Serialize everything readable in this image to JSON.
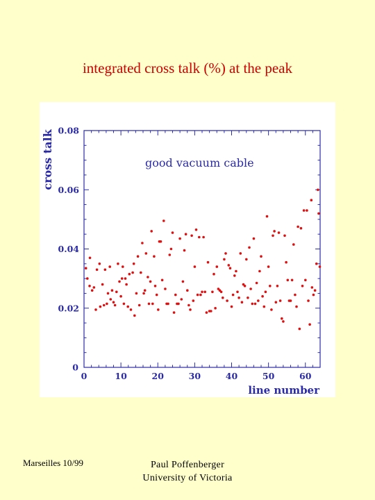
{
  "slide": {
    "title": "integrated cross talk (%) at the peak",
    "footer_left": "Marseilles 10/99",
    "footer_name": "Paul Poffenberger",
    "footer_affiliation": "University of Victoria"
  },
  "colors": {
    "background": "#ffffcc",
    "title": "#cc0000",
    "axis": "#2a2aa8",
    "points": "#dd1111"
  },
  "chart_data": {
    "type": "scatter",
    "title": "",
    "annotation": "good vacuum cable",
    "xlabel": "line number",
    "ylabel": "cross talk",
    "xlim": [
      0,
      64
    ],
    "ylim": [
      0,
      0.08
    ],
    "xticks": [
      "0",
      "10",
      "20",
      "30",
      "40",
      "50",
      "60"
    ],
    "yticks": [
      "0",
      "0.02",
      "0.04",
      "0.06",
      "0.08"
    ],
    "grid": false,
    "series": [
      {
        "marker": "dot",
        "points": [
          [
            0.5,
            0.0335
          ],
          [
            0.9,
            0.03
          ],
          [
            1.5,
            0.0275
          ],
          [
            1.6,
            0.037
          ],
          [
            2.2,
            0.026
          ],
          [
            2.7,
            0.027
          ],
          [
            3.2,
            0.0195
          ],
          [
            3.5,
            0.033
          ],
          [
            4.2,
            0.035
          ],
          [
            4.4,
            0.0205
          ],
          [
            5.0,
            0.028
          ],
          [
            5.4,
            0.021
          ],
          [
            5.7,
            0.033
          ],
          [
            6.2,
            0.0215
          ],
          [
            6.5,
            0.025
          ],
          [
            7.0,
            0.034
          ],
          [
            7.2,
            0.023
          ],
          [
            7.6,
            0.026
          ],
          [
            8.0,
            0.022
          ],
          [
            8.4,
            0.021
          ],
          [
            8.8,
            0.0255
          ],
          [
            9.2,
            0.035
          ],
          [
            9.6,
            0.029
          ],
          [
            10.0,
            0.024
          ],
          [
            10.3,
            0.03
          ],
          [
            10.5,
            0.034
          ],
          [
            10.8,
            0.0215
          ],
          [
            11.2,
            0.03
          ],
          [
            11.5,
            0.028
          ],
          [
            11.9,
            0.0205
          ],
          [
            12.3,
            0.0315
          ],
          [
            12.7,
            0.0195
          ],
          [
            13.2,
            0.032
          ],
          [
            13.5,
            0.035
          ],
          [
            13.7,
            0.0175
          ],
          [
            14.2,
            0.025
          ],
          [
            14.6,
            0.0375
          ],
          [
            15.0,
            0.021
          ],
          [
            15.4,
            0.032
          ],
          [
            15.8,
            0.042
          ],
          [
            16.2,
            0.025
          ],
          [
            16.5,
            0.026
          ],
          [
            16.8,
            0.0385
          ],
          [
            17.3,
            0.0305
          ],
          [
            17.6,
            0.0215
          ],
          [
            18.0,
            0.029
          ],
          [
            18.3,
            0.046
          ],
          [
            18.6,
            0.0215
          ],
          [
            19.0,
            0.0375
          ],
          [
            19.3,
            0.0275
          ],
          [
            19.7,
            0.0245
          ],
          [
            20.1,
            0.0195
          ],
          [
            20.4,
            0.0425
          ],
          [
            20.8,
            0.0425
          ],
          [
            21.2,
            0.0295
          ],
          [
            21.6,
            0.0495
          ],
          [
            22.0,
            0.0265
          ],
          [
            22.4,
            0.0215
          ],
          [
            22.8,
            0.0215
          ],
          [
            23.2,
            0.038
          ],
          [
            23.6,
            0.04
          ],
          [
            24.0,
            0.0455
          ],
          [
            24.4,
            0.0185
          ],
          [
            24.8,
            0.0245
          ],
          [
            25.2,
            0.0215
          ],
          [
            25.6,
            0.0215
          ],
          [
            26.0,
            0.0435
          ],
          [
            26.4,
            0.023
          ],
          [
            26.8,
            0.029
          ],
          [
            27.2,
            0.0395
          ],
          [
            27.6,
            0.045
          ],
          [
            28.0,
            0.026
          ],
          [
            28.4,
            0.021
          ],
          [
            28.8,
            0.0195
          ],
          [
            29.2,
            0.0445
          ],
          [
            29.6,
            0.0225
          ],
          [
            30.0,
            0.034
          ],
          [
            30.4,
            0.0465
          ],
          [
            30.8,
            0.0245
          ],
          [
            31.2,
            0.044
          ],
          [
            31.6,
            0.0245
          ],
          [
            32.0,
            0.0255
          ],
          [
            32.4,
            0.044
          ],
          [
            32.8,
            0.0255
          ],
          [
            33.2,
            0.0185
          ],
          [
            33.6,
            0.0355
          ],
          [
            34.0,
            0.019
          ],
          [
            34.4,
            0.019
          ],
          [
            34.8,
            0.0255
          ],
          [
            35.2,
            0.0315
          ],
          [
            35.6,
            0.02
          ],
          [
            36.0,
            0.034
          ],
          [
            36.4,
            0.0265
          ],
          [
            36.8,
            0.026
          ],
          [
            37.2,
            0.0255
          ],
          [
            37.6,
            0.0235
          ],
          [
            38.0,
            0.0365
          ],
          [
            38.4,
            0.0385
          ],
          [
            38.8,
            0.0225
          ],
          [
            39.2,
            0.0345
          ],
          [
            39.6,
            0.0335
          ],
          [
            40.0,
            0.0205
          ],
          [
            40.4,
            0.0245
          ],
          [
            40.8,
            0.031
          ],
          [
            41.2,
            0.0325
          ],
          [
            41.6,
            0.0255
          ],
          [
            42.0,
            0.0235
          ],
          [
            42.4,
            0.0385
          ],
          [
            42.8,
            0.022
          ],
          [
            43.2,
            0.028
          ],
          [
            43.6,
            0.0275
          ],
          [
            44.0,
            0.0365
          ],
          [
            44.4,
            0.0235
          ],
          [
            44.8,
            0.0405
          ],
          [
            45.2,
            0.0265
          ],
          [
            45.6,
            0.0215
          ],
          [
            46.0,
            0.0435
          ],
          [
            46.4,
            0.0215
          ],
          [
            46.8,
            0.0285
          ],
          [
            47.2,
            0.0225
          ],
          [
            47.6,
            0.0325
          ],
          [
            48.0,
            0.0375
          ],
          [
            48.4,
            0.024
          ],
          [
            48.8,
            0.0205
          ],
          [
            49.2,
            0.0255
          ],
          [
            49.6,
            0.051
          ],
          [
            50.0,
            0.034
          ],
          [
            50.4,
            0.0275
          ],
          [
            50.8,
            0.0195
          ],
          [
            51.2,
            0.0445
          ],
          [
            51.6,
            0.046
          ],
          [
            52.0,
            0.022
          ],
          [
            52.4,
            0.0275
          ],
          [
            52.8,
            0.0455
          ],
          [
            53.2,
            0.0225
          ],
          [
            53.6,
            0.0165
          ],
          [
            54.0,
            0.0155
          ],
          [
            54.4,
            0.0445
          ],
          [
            54.8,
            0.0355
          ],
          [
            55.2,
            0.0295
          ],
          [
            55.6,
            0.0225
          ],
          [
            56.0,
            0.0225
          ],
          [
            56.4,
            0.0295
          ],
          [
            56.8,
            0.0415
          ],
          [
            57.2,
            0.0245
          ],
          [
            57.6,
            0.0205
          ],
          [
            58.0,
            0.0475
          ],
          [
            58.4,
            0.013
          ],
          [
            58.8,
            0.047
          ],
          [
            59.2,
            0.0275
          ],
          [
            59.6,
            0.053
          ],
          [
            60.0,
            0.0295
          ],
          [
            60.4,
            0.053
          ],
          [
            60.8,
            0.0225
          ],
          [
            61.2,
            0.0145
          ],
          [
            61.6,
            0.0565
          ],
          [
            61.8,
            0.027
          ],
          [
            62.2,
            0.0245
          ],
          [
            62.6,
            0.026
          ],
          [
            63.0,
            0.035
          ],
          [
            63.4,
            0.06
          ],
          [
            63.6,
            0.052
          ],
          [
            63.9,
            0.034
          ]
        ]
      }
    ]
  }
}
